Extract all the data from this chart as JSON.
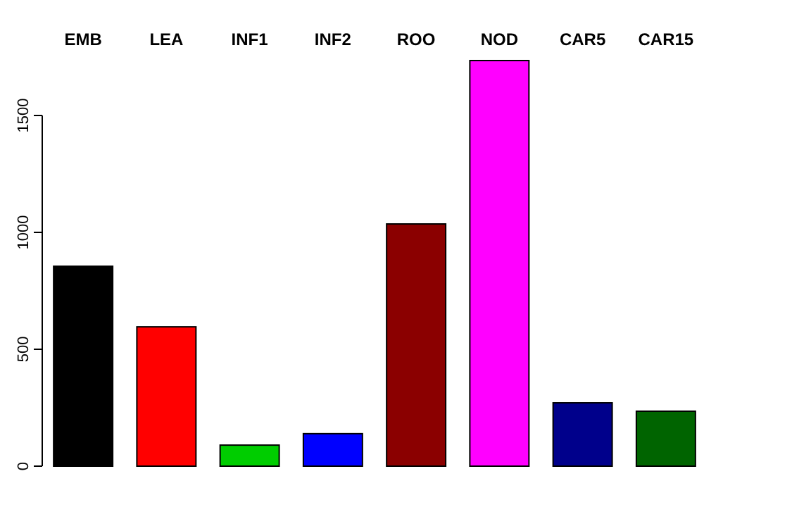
{
  "chart_data": {
    "type": "bar",
    "categories": [
      "EMB",
      "LEA",
      "INF1",
      "INF2",
      "ROO",
      "NOD",
      "CAR5",
      "CAR15"
    ],
    "values": [
      855,
      596,
      90,
      139,
      1036,
      1735,
      271,
      235
    ],
    "colors": [
      "#000000",
      "#ff0000",
      "#00cd00",
      "#0000ff",
      "#8b0000",
      "#ff00ff",
      "#00008b",
      "#006400"
    ],
    "ylim": [
      0,
      1750
    ],
    "yticks": [
      0,
      500,
      1000,
      1500
    ],
    "grid": false
  }
}
